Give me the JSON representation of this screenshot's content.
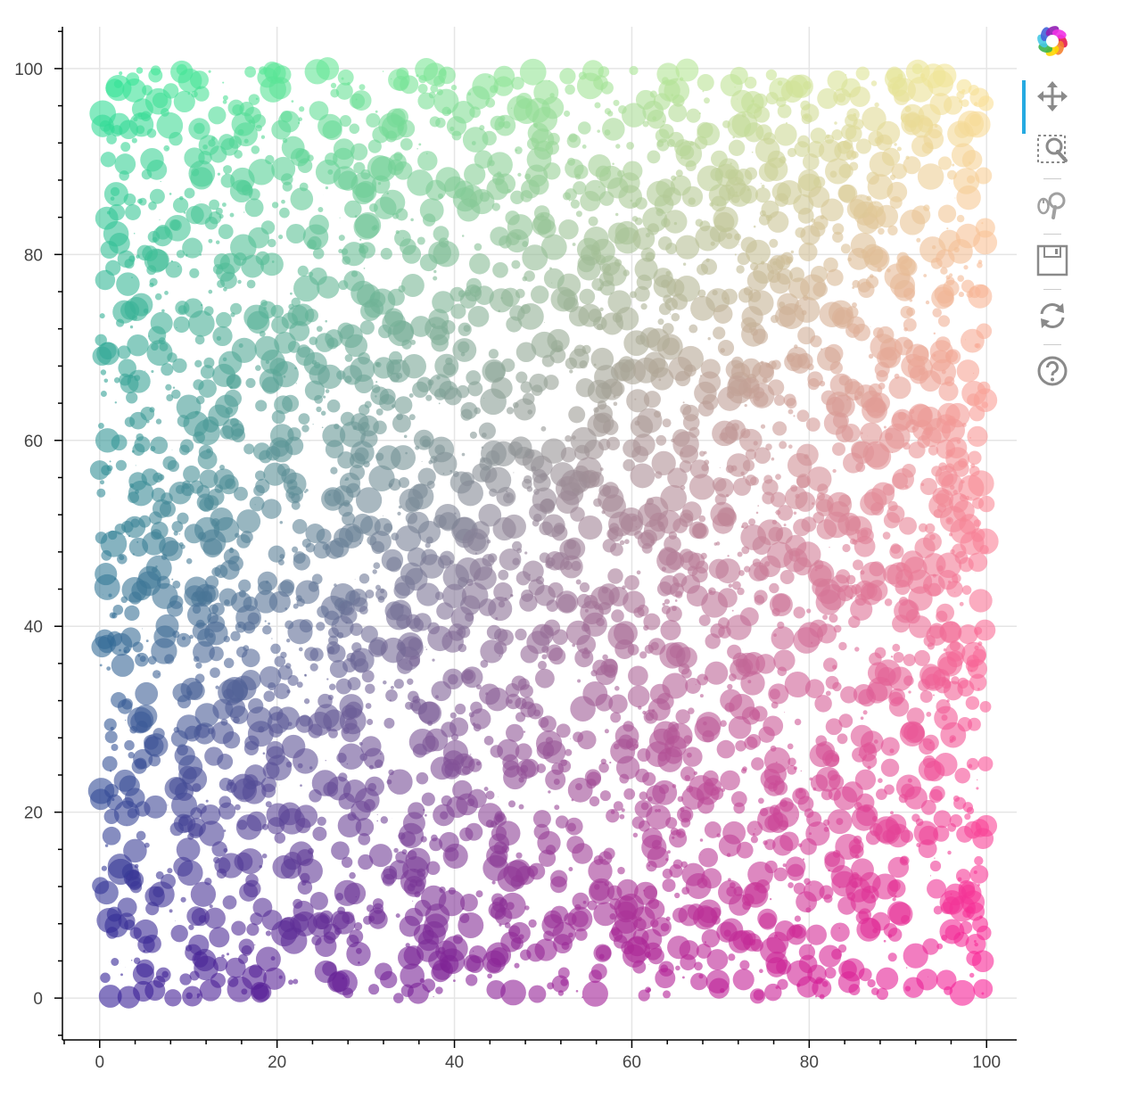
{
  "chart_data": {
    "type": "scatter",
    "title": "",
    "xlabel": "",
    "ylabel": "",
    "xlim": [
      -4.2,
      104
    ],
    "ylim": [
      -4.5,
      104.5
    ],
    "x_ticks": [
      0,
      20,
      40,
      60,
      80,
      100
    ],
    "y_ticks": [
      0,
      20,
      40,
      60,
      80,
      100
    ],
    "x_tick_labels": [
      "0",
      "20",
      "40",
      "60",
      "80",
      "100"
    ],
    "y_tick_labels": [
      "0",
      "20",
      "40",
      "60",
      "80",
      "100"
    ],
    "grid": true,
    "n_points": 4000,
    "x_range": [
      0,
      100
    ],
    "y_range": [
      0,
      100
    ],
    "radius_range": [
      0,
      1.5
    ],
    "fill_alpha": 0.6,
    "color_rule": "rgb(50 + 2x, 30 + 2y, 150)",
    "corner_colors": {
      "x0_y0": "#321e96",
      "x100_y0": "#fa1e96",
      "x0_y100": "#32e696",
      "x100_y100": "#fae696"
    },
    "sample_points": [
      {
        "x": 1.2,
        "y": 0.2,
        "r": 1.3
      },
      {
        "x": 27.0,
        "y": 1.8,
        "r": 1.2
      },
      {
        "x": 99.6,
        "y": 1.0,
        "r": 1.1
      },
      {
        "x": 2.3,
        "y": 14.2,
        "r": 1.4
      },
      {
        "x": 13.0,
        "y": 8.6,
        "r": 1.2
      },
      {
        "x": 86.0,
        "y": 13.8,
        "r": 1.3
      },
      {
        "x": 2.6,
        "y": 35.8,
        "r": 1.3
      },
      {
        "x": 0.0,
        "y": 56.8,
        "r": 1.1
      },
      {
        "x": 96.6,
        "y": 59.2,
        "r": 1.2
      },
      {
        "x": 0.8,
        "y": 83.9,
        "r": 1.3
      },
      {
        "x": 94.0,
        "y": 99.2,
        "r": 1.4
      },
      {
        "x": 37.8,
        "y": 99.4,
        "r": 1.3
      },
      {
        "x": 19.8,
        "y": 99.5,
        "r": 1.2
      },
      {
        "x": 53.2,
        "y": 46.4,
        "r": 1.3
      },
      {
        "x": 61.2,
        "y": 56.2,
        "r": 1.4
      },
      {
        "x": 68.0,
        "y": 74.2,
        "r": 1.4
      }
    ]
  },
  "toolbar": {
    "logo": "bokeh-logo-icon",
    "active_tool": "pan",
    "tools": [
      "pan-icon",
      "box-zoom-icon",
      "wheel-zoom-icon",
      "save-icon",
      "reset-icon",
      "help-icon"
    ]
  }
}
